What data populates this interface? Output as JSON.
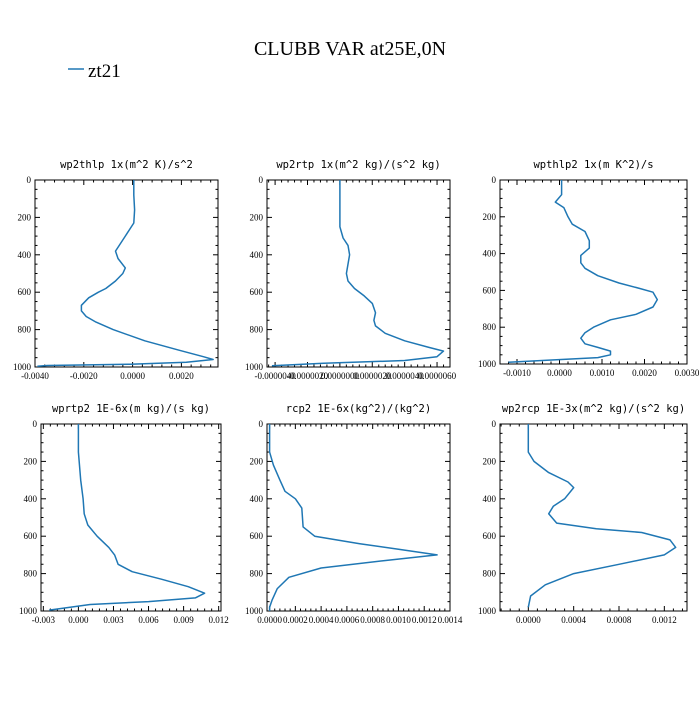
{
  "figure": {
    "title": "CLUBB VAR at25E,0N",
    "legend": {
      "label": "zt21",
      "color": "#1f77b4"
    }
  },
  "chart_data": [
    {
      "type": "line",
      "title": "wp2thlp   1x(m^2 K)/s^2",
      "xlim": [
        -0.004,
        0.0035
      ],
      "ylim": [
        1000,
        0
      ],
      "xticks": [
        "-0.0040",
        "-0.0020",
        "0.0000",
        "0.0020"
      ],
      "xtick_values": [
        -0.004,
        -0.002,
        0.0,
        0.002
      ],
      "yticks": [
        "0",
        "200",
        "400",
        "600",
        "800",
        "1000"
      ],
      "ytick_values": [
        0,
        200,
        400,
        600,
        800,
        1000
      ],
      "series": [
        {
          "color": "#1f77b4",
          "x": [
            5e-05,
            5e-05,
            8e-05,
            5e-05,
            -0.0003,
            -0.0005,
            -0.0007,
            -0.0006,
            -0.0003,
            -0.0004,
            -0.0007,
            -0.0011,
            -0.0014,
            -0.0018,
            -0.0021,
            -0.0021,
            -0.0019,
            -0.0015,
            -0.0008,
            0.0005,
            0.0019,
            0.0029,
            0.0033,
            0.0022,
            -0.0001,
            -0.0035,
            -0.0039
          ],
          "y": [
            0,
            80,
            160,
            230,
            300,
            340,
            380,
            420,
            470,
            500,
            540,
            580,
            600,
            630,
            670,
            700,
            730,
            760,
            800,
            860,
            910,
            945,
            960,
            975,
            985,
            992,
            996
          ]
        }
      ]
    },
    {
      "type": "line",
      "title": "wp2rtp   1x(m^2 kg)/(s^2 kg)",
      "xlim": [
        -4.5e-06,
        6.8e-06
      ],
      "ylim": [
        1000,
        0
      ],
      "xticks": [
        "-0.0000040",
        "-0.0000020",
        "0.0000000",
        "0.0000020",
        "0.0000040",
        "0.0000060"
      ],
      "xtick_values": [
        -4e-06,
        -2e-06,
        0.0,
        2e-06,
        4e-06,
        6e-06
      ],
      "yticks": [
        "0",
        "200",
        "400",
        "600",
        "800",
        "1000"
      ],
      "ytick_values": [
        0,
        200,
        400,
        600,
        800,
        1000
      ],
      "series": [
        {
          "color": "#1f77b4",
          "x": [
            0.0,
            0.0,
            0.0,
            2e-07,
            5e-07,
            6e-07,
            5e-07,
            4e-07,
            5e-07,
            9e-07,
            1.5e-06,
            2e-06,
            2.2e-06,
            2.1e-06,
            2.2e-06,
            2.8e-06,
            4e-06,
            5.5e-06,
            6.4e-06,
            6e-06,
            4e-06,
            -1e-06,
            -4.2e-06
          ],
          "y": [
            0,
            120,
            250,
            310,
            350,
            400,
            450,
            500,
            540,
            580,
            620,
            660,
            710,
            750,
            780,
            820,
            860,
            895,
            915,
            945,
            965,
            980,
            993
          ]
        }
      ]
    },
    {
      "type": "line",
      "title": "wpthlp2   1x(m K^2)/s",
      "xlim": [
        -0.0014,
        0.003
      ],
      "ylim": [
        1000,
        0
      ],
      "xticks": [
        "-0.0010",
        "0.0000",
        "0.0010",
        "0.0020",
        "0.0030"
      ],
      "xtick_values": [
        -0.001,
        0.0,
        0.001,
        0.002,
        0.003
      ],
      "yticks": [
        "0",
        "200",
        "400",
        "600",
        "800",
        "1000"
      ],
      "ytick_values": [
        0,
        200,
        400,
        600,
        800,
        1000
      ],
      "series": [
        {
          "color": "#1f77b4",
          "x": [
            5e-05,
            5e-05,
            -0.0001,
            0.0001,
            0.0002,
            0.0003,
            0.0006,
            0.0007,
            0.0007,
            0.0005,
            0.0005,
            0.0006,
            0.0009,
            0.0014,
            0.0019,
            0.0022,
            0.0023,
            0.0022,
            0.0018,
            0.0012,
            0.0008,
            0.0006,
            0.0005,
            0.0006,
            0.0009,
            0.0012,
            0.0012,
            0.0009,
            -0.0003,
            -0.0012
          ],
          "y": [
            0,
            80,
            120,
            150,
            200,
            240,
            280,
            330,
            370,
            410,
            450,
            480,
            520,
            560,
            590,
            610,
            650,
            690,
            730,
            760,
            800,
            830,
            860,
            890,
            910,
            930,
            950,
            965,
            980,
            990
          ]
        }
      ]
    },
    {
      "type": "line",
      "title": "wprtp2   1E-6x(m kg)/(s kg)",
      "xlim": [
        -0.0032,
        0.0122
      ],
      "ylim": [
        1000,
        0
      ],
      "xticks": [
        "-0.003",
        "0.000",
        "0.003",
        "0.006",
        "0.009",
        "0.012"
      ],
      "xtick_values": [
        -0.003,
        0.0,
        0.003,
        0.006,
        0.009,
        0.012
      ],
      "yticks": [
        "0",
        "200",
        "400",
        "600",
        "800",
        "1000"
      ],
      "ytick_values": [
        0,
        200,
        400,
        600,
        800,
        1000
      ],
      "series": [
        {
          "color": "#1f77b4",
          "x": [
            0.0,
            0.0,
            0.0002,
            0.0004,
            0.0005,
            0.0008,
            0.0016,
            0.0026,
            0.0031,
            0.0034,
            0.0046,
            0.0071,
            0.0094,
            0.0108,
            0.01,
            0.006,
            0.001,
            -0.0025
          ],
          "y": [
            0,
            150,
            300,
            400,
            480,
            540,
            600,
            660,
            700,
            750,
            790,
            830,
            870,
            905,
            930,
            950,
            965,
            995
          ]
        }
      ]
    },
    {
      "type": "line",
      "title": "rcp2   1E-6x(kg^2)/(kg^2)",
      "xlim": [
        -2e-05,
        0.0014
      ],
      "ylim": [
        1000,
        0
      ],
      "xticks": [
        "0.0000",
        "0.0002",
        "0.0004",
        "0.0006",
        "0.0008",
        "0.0010",
        "0.0012",
        "0.0014"
      ],
      "xtick_values": [
        0.0,
        0.0002,
        0.0004,
        0.0006,
        0.0008,
        0.001,
        0.0012,
        0.0014
      ],
      "yticks": [
        "0",
        "200",
        "400",
        "600",
        "800",
        "1000"
      ],
      "ytick_values": [
        0,
        200,
        400,
        600,
        800,
        1000
      ],
      "series": [
        {
          "color": "#1f77b4",
          "x": [
            0.0,
            0.0,
            3e-05,
            8e-05,
            0.00012,
            0.0002,
            0.00025,
            0.00026,
            0.00035,
            0.0007,
            0.001,
            0.0013,
            0.0009,
            0.0004,
            0.00015,
            6e-05,
            2e-05,
            0.0,
            0.0
          ],
          "y": [
            0,
            150,
            220,
            300,
            360,
            400,
            450,
            550,
            600,
            640,
            670,
            700,
            730,
            770,
            820,
            880,
            940,
            980,
            1000
          ]
        }
      ]
    },
    {
      "type": "line",
      "title": "wp2rcp   1E-3x(m^2 kg)/(s^2 kg)",
      "xlim": [
        -0.00025,
        0.0014
      ],
      "ylim": [
        1000,
        0
      ],
      "xticks": [
        "0.0000",
        "0.0004",
        "0.0008",
        "0.0012"
      ],
      "xtick_values": [
        0.0,
        0.0004,
        0.0008,
        0.0012
      ],
      "yticks": [
        "0",
        "200",
        "400",
        "600",
        "800",
        "1000"
      ],
      "ytick_values": [
        0,
        200,
        400,
        600,
        800,
        1000
      ],
      "series": [
        {
          "color": "#1f77b4",
          "x": [
            0.0,
            0.0,
            5e-05,
            0.00018,
            0.00035,
            0.0004,
            0.00032,
            0.00022,
            0.00018,
            0.00025,
            0.0006,
            0.001,
            0.00125,
            0.0013,
            0.0012,
            0.0008,
            0.0004,
            0.00015,
            2e-05,
            0.0
          ],
          "y": [
            0,
            150,
            200,
            260,
            310,
            340,
            400,
            440,
            480,
            530,
            560,
            580,
            620,
            660,
            700,
            750,
            800,
            860,
            920,
            980
          ]
        }
      ]
    }
  ]
}
